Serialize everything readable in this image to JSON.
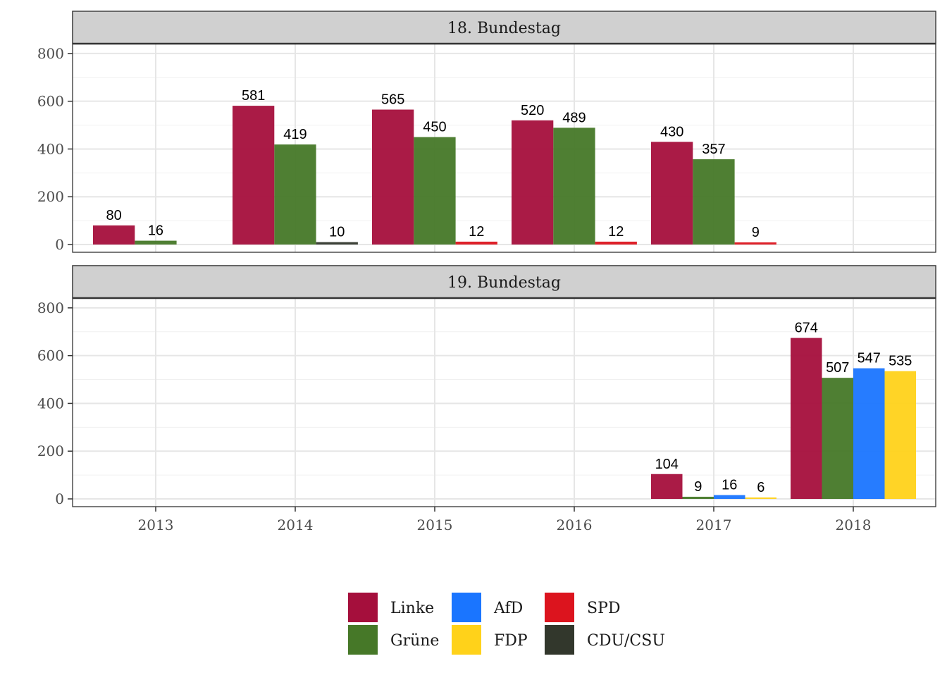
{
  "chart_data": {
    "type": "bar",
    "x": [
      "2013",
      "2014",
      "2015",
      "2016",
      "2017",
      "2018"
    ],
    "ylim": [
      0,
      900
    ],
    "yticks": [
      0,
      200,
      400,
      600,
      800
    ],
    "grid": true,
    "legend_position": "bottom",
    "legend": [
      {
        "name": "Linke",
        "color": "#a50f3c"
      },
      {
        "name": "Grüne",
        "color": "#467828"
      },
      {
        "name": "AfD",
        "color": "#1a75ff"
      },
      {
        "name": "FDP",
        "color": "#ffd21a"
      },
      {
        "name": "SPD",
        "color": "#dc141e"
      },
      {
        "name": "CDU/CSU",
        "color": "#32372c"
      }
    ],
    "panels": [
      {
        "title": "18. Bundestag",
        "groups": [
          {
            "x": "2013",
            "bars": [
              {
                "party": "Linke",
                "value": 80
              },
              {
                "party": "Grüne",
                "value": 16
              }
            ]
          },
          {
            "x": "2014",
            "bars": [
              {
                "party": "Linke",
                "value": 581
              },
              {
                "party": "Grüne",
                "value": 419
              },
              {
                "party": "CDU/CSU",
                "value": 10
              }
            ]
          },
          {
            "x": "2015",
            "bars": [
              {
                "party": "Linke",
                "value": 565
              },
              {
                "party": "Grüne",
                "value": 450
              },
              {
                "party": "SPD",
                "value": 12
              }
            ]
          },
          {
            "x": "2016",
            "bars": [
              {
                "party": "Linke",
                "value": 520
              },
              {
                "party": "Grüne",
                "value": 489
              },
              {
                "party": "SPD",
                "value": 12
              }
            ]
          },
          {
            "x": "2017",
            "bars": [
              {
                "party": "Linke",
                "value": 430
              },
              {
                "party": "Grüne",
                "value": 357
              },
              {
                "party": "SPD",
                "value": 9
              }
            ]
          }
        ]
      },
      {
        "title": "19. Bundestag",
        "groups": [
          {
            "x": "2017",
            "bars": [
              {
                "party": "Linke",
                "value": 104
              },
              {
                "party": "Grüne",
                "value": 9
              },
              {
                "party": "AfD",
                "value": 16
              },
              {
                "party": "FDP",
                "value": 6
              }
            ]
          },
          {
            "x": "2018",
            "bars": [
              {
                "party": "Linke",
                "value": 674
              },
              {
                "party": "Grüne",
                "value": 507
              },
              {
                "party": "AfD",
                "value": 547
              },
              {
                "party": "FDP",
                "value": 535
              }
            ]
          }
        ]
      }
    ]
  }
}
